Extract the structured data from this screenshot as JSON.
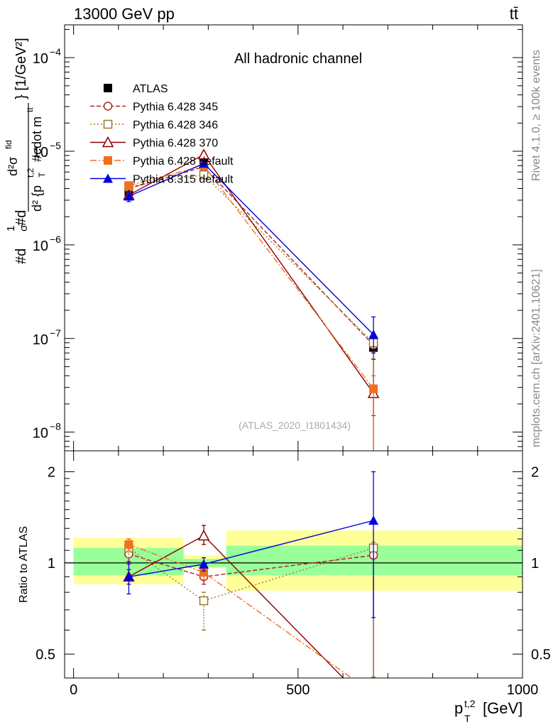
{
  "header": {
    "left": "13000 GeV pp",
    "right": "tt̄"
  },
  "side_labels": {
    "rivet": "Rivet 4.1.0, ≥ 100k events",
    "mcplots": "mcplots.cern.ch [arXiv:2401.10621]"
  },
  "chart_data": [
    {
      "type": "line",
      "panel": "main",
      "title": "All hadronic channel",
      "watermark": "(ATLAS_2020_I1801434)",
      "ylabel": "#d1/σ #d d²σ^{fid} / d²{p_T^{t,2} #cdot m^{tt}} [1/GeV²]",
      "ylabel_parts": {
        "a": "#d",
        "b": "1",
        "c": "σ",
        "d": "#d",
        "num": "d²σ",
        "num_sup": "fid",
        "den": "d² {p",
        "den_sub": "T",
        "den_sup": "t,2",
        "den_tail": "#cdot m",
        "den_sup2": "tt",
        "unit": "} [1/GeV²]"
      },
      "yscale": "log",
      "xlim": [
        -20,
        1000
      ],
      "ylim_log10": [
        -8.2,
        -3.65
      ],
      "yticks": [
        {
          "exp": -4,
          "label": "10",
          "sup": "−4"
        },
        {
          "exp": -5,
          "label": "10",
          "sup": "−5"
        },
        {
          "exp": -6,
          "label": "10",
          "sup": "−6"
        },
        {
          "exp": -7,
          "label": "10",
          "sup": "−7"
        },
        {
          "exp": -8,
          "label": "10",
          "sup": "−8"
        }
      ],
      "series": [
        {
          "name": "ATLAS",
          "color": "#000000",
          "marker": "square-filled",
          "dash": "",
          "x": [
            123,
            290,
            668
          ],
          "y": [
            3.7e-06,
            7.5e-06,
            8e-08
          ],
          "err_lo": [
            5e-07,
            6e-07,
            2e-08
          ],
          "err_hi": [
            5e-07,
            6e-07,
            2e-08
          ],
          "no_line": true
        },
        {
          "name": "Pythia 6.428 345",
          "color": "#b22222",
          "marker": "circle-open",
          "dash": "6,3",
          "x": [
            123,
            290,
            668
          ],
          "y": [
            4e-06,
            6.8e-06,
            8.5e-08
          ],
          "err_lo": [
            3e-07,
            3e-07,
            7e-08
          ],
          "err_hi": [
            3e-07,
            3e-07,
            3e-09
          ]
        },
        {
          "name": "Pythia 6.428 346",
          "color": "#9a7a2a",
          "marker": "square-open",
          "dash": "2,3",
          "x": [
            123,
            290,
            668
          ],
          "y": [
            4.2e-06,
            5.6e-06,
            9e-08
          ],
          "err_lo": [
            3e-07,
            4e-07,
            5e-08
          ],
          "err_hi": [
            3e-07,
            4e-07,
            3e-09
          ]
        },
        {
          "name": "Pythia 6.428 370",
          "color": "#8b0000",
          "marker": "triangle-open",
          "dash": "",
          "x": [
            123,
            290,
            668
          ],
          "y": [
            3.4e-06,
            9.2e-06,
            2.6e-08
          ],
          "err_lo": [
            3e-07,
            6e-07,
            2e-08
          ],
          "err_hi": [
            3e-07,
            6e-07,
            3e-09
          ]
        },
        {
          "name": "Pythia 6.428 default",
          "color": "#f07020",
          "marker": "square-filled",
          "dash": "9,3,2,3",
          "x": [
            123,
            290,
            668
          ],
          "y": [
            4.3e-06,
            7e-06,
            2.9e-08
          ],
          "err_lo": [
            3e-07,
            3e-07,
            2.5e-08
          ],
          "err_hi": [
            3e-07,
            3e-07,
            3e-09
          ]
        },
        {
          "name": "Pythia 8.315 default",
          "color": "#0000dd",
          "marker": "triangle-filled",
          "dash": "",
          "x": [
            123,
            290,
            668
          ],
          "y": [
            3.3e-06,
            7.4e-06,
            1.1e-07
          ],
          "err_lo": [
            4e-07,
            4e-07,
            4e-08
          ],
          "err_hi": [
            4e-07,
            4e-07,
            6e-08
          ]
        }
      ]
    },
    {
      "type": "line",
      "panel": "ratio",
      "ylabel": "Ratio to ATLAS",
      "xlabel": "p",
      "xlabel_sub": "T",
      "xlabel_sup": "t,2",
      "xlabel_unit": " [GeV]",
      "xlim": [
        -20,
        1000
      ],
      "ylim_log10": [
        -0.38,
        0.37
      ],
      "xticks": [
        0,
        500,
        1000
      ],
      "xtick_labels": [
        "0",
        "500",
        "1000"
      ],
      "yticks": [
        0.5,
        1,
        2
      ],
      "ytick_labels": [
        "0.5",
        "1",
        "2"
      ],
      "bands": [
        {
          "x0": 0,
          "x1": 245,
          "yellow": [
            0.85,
            1.21
          ],
          "green": [
            0.91,
            1.12
          ]
        },
        {
          "x0": 245,
          "x1": 340,
          "yellow": [
            0.96,
            1.06
          ],
          "green": [
            0.97,
            1.03
          ]
        },
        {
          "x0": 340,
          "x1": 1000,
          "yellow": [
            0.81,
            1.28
          ],
          "green": [
            0.91,
            1.14
          ]
        }
      ],
      "series": [
        {
          "name": "Pythia 6.428 345",
          "color": "#b22222",
          "marker": "circle-open",
          "dash": "6,3",
          "x": [
            123,
            290,
            668
          ],
          "y": [
            1.07,
            0.9,
            1.06
          ],
          "err_lo": [
            0.08,
            0.05,
            0.64
          ],
          "err_hi": [
            0.08,
            0.05,
            0.05
          ]
        },
        {
          "name": "Pythia 6.428 346",
          "color": "#9a7a2a",
          "marker": "square-open",
          "dash": "2,3",
          "x": [
            123,
            290,
            668
          ],
          "y": [
            1.12,
            0.75,
            1.12
          ],
          "err_lo": [
            0.08,
            0.15,
            0.7
          ],
          "err_hi": [
            0.08,
            0.05,
            0.05
          ]
        },
        {
          "name": "Pythia 6.428 370",
          "color": "#8b0000",
          "marker": "triangle-open",
          "dash": "",
          "x": [
            123,
            290,
            668
          ],
          "y": [
            0.9,
            1.23,
            0.33
          ],
          "err_lo": [
            0.05,
            0.08,
            0.0
          ],
          "err_hi": [
            0.05,
            0.1,
            0.0
          ]
        },
        {
          "name": "Pythia 6.428 default",
          "color": "#f07020",
          "marker": "square-filled",
          "dash": "9,3,2,3",
          "x": [
            123,
            290,
            668
          ],
          "y": [
            1.15,
            0.93,
            0.37
          ],
          "err_lo": [
            0.05,
            0.05,
            0.0
          ],
          "err_hi": [
            0.05,
            0.05,
            0.0
          ]
        },
        {
          "name": "Pythia 8.315 default",
          "color": "#0000dd",
          "marker": "triangle-filled",
          "dash": "",
          "x": [
            123,
            290,
            668
          ],
          "y": [
            0.9,
            0.99,
            1.38
          ],
          "err_lo": [
            0.11,
            0.05,
            0.72
          ],
          "err_hi": [
            0.11,
            0.05,
            0.62
          ]
        }
      ]
    }
  ]
}
